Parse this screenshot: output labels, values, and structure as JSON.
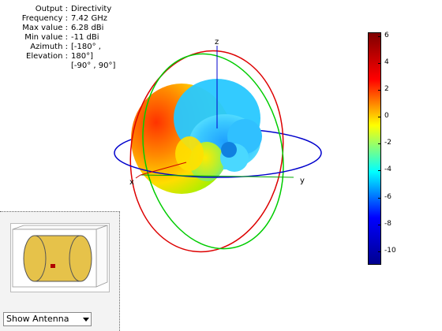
{
  "info": {
    "rows": [
      {
        "label": "Output :",
        "value": "Directivity"
      },
      {
        "label": "Frequency :",
        "value": "7.42 GHz"
      },
      {
        "label": "Max value :",
        "value": "6.28 dBi"
      },
      {
        "label": "Min value :",
        "value": "-11 dBi"
      },
      {
        "label": "Azimuth :",
        "value": "[-180° ,"
      },
      {
        "label": "Elevation :",
        "value": "180°]"
      },
      {
        "label": "",
        "value": "[-90° , 90°]"
      }
    ]
  },
  "axes": {
    "x": "x",
    "y": "y",
    "z": "z"
  },
  "colorbar": {
    "ticks": [
      "6",
      "4",
      "2",
      "0",
      "-2",
      "-4",
      "-6",
      "-8",
      "-10"
    ],
    "min": -11,
    "max": 6.28,
    "colors": [
      "#7f0000",
      "#ff0000",
      "#ffff00",
      "#00ffff",
      "#0000ff",
      "#00008f"
    ]
  },
  "ring_colors": {
    "azimuth": "#0000cc",
    "elevation_xz": "#dd0000",
    "elevation_yz": "#00cc00"
  },
  "antenna": {
    "select_value": "Show Antenna",
    "body_color": "#e6c24a",
    "feed_color": "#b00000"
  }
}
